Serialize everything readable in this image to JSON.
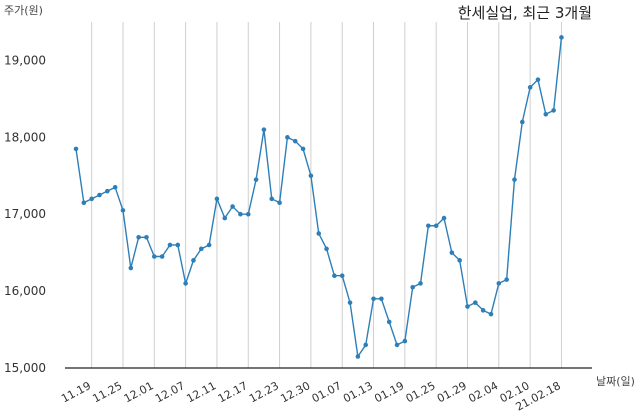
{
  "chart_data": {
    "type": "line",
    "title": "한세실업, 최근 3개월",
    "ylabel": "주가(원)",
    "xlabel": "날짜(일)",
    "ylim": [
      15000,
      19500
    ],
    "yticks": [
      15000,
      16000,
      17000,
      18000,
      19000
    ],
    "ytick_labels": [
      "15,000",
      "16,000",
      "17,000",
      "18,000",
      "19,000"
    ],
    "xtick_indices": [
      2,
      6,
      10,
      14,
      18,
      22,
      26,
      30,
      34,
      38,
      42,
      46,
      50,
      54,
      58,
      62
    ],
    "xtick_labels": [
      "11.19",
      "11.25",
      "12.01",
      "12.07",
      "12.11",
      "12.17",
      "12.23",
      "12.30",
      "01.07",
      "01.13",
      "01.19",
      "01.25",
      "01.29",
      "02.04",
      "02.10",
      "21.02.18"
    ],
    "grid": "vertical",
    "color": "#2e7fb8",
    "values": [
      17850,
      17150,
      17200,
      17250,
      17300,
      17350,
      17050,
      16300,
      16700,
      16700,
      16450,
      16450,
      16600,
      16600,
      16100,
      16400,
      16550,
      16600,
      17200,
      16950,
      17100,
      17000,
      17000,
      17450,
      18100,
      17200,
      17150,
      18000,
      17950,
      17850,
      17500,
      16750,
      16550,
      16200,
      16200,
      15850,
      15150,
      15300,
      15900,
      15900,
      15600,
      15300,
      15350,
      16050,
      16100,
      16850,
      16850,
      16950,
      16500,
      16400,
      15800,
      15850,
      15750,
      15700,
      16100,
      16150,
      17450,
      18200,
      18650,
      18750,
      18300,
      18350,
      19300
    ]
  }
}
